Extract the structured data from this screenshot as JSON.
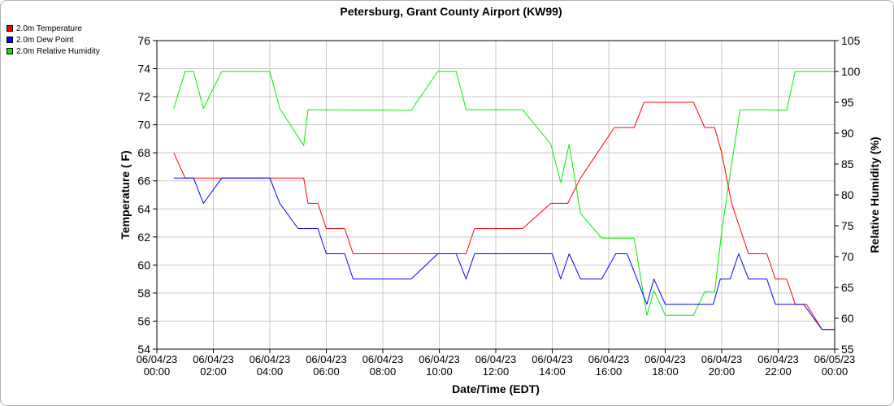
{
  "chart_data": {
    "type": "line",
    "title": "Petersburg, Grant County Airport (KW99)",
    "xlabel": "Date/Time (EDT)",
    "ylabel_left": "Temperature ( F)",
    "ylabel_right": "Relative Humidity (%)",
    "ylim_left": [
      54,
      76
    ],
    "ylim_right": [
      55,
      105
    ],
    "xlim_hours": [
      0,
      24
    ],
    "grid": true,
    "legend_placement": "top-left",
    "yticks_left": [
      "54",
      "56",
      "58",
      "60",
      "62",
      "64",
      "66",
      "68",
      "70",
      "72",
      "74",
      "76"
    ],
    "yticks_right": [
      "55",
      "60",
      "65",
      "70",
      "75",
      "80",
      "85",
      "90",
      "95",
      "100",
      "105"
    ],
    "x_ticks": [
      {
        "date": "06/04/23",
        "time": "00:00"
      },
      {
        "date": "06/04/23",
        "time": "02:00"
      },
      {
        "date": "06/04/23",
        "time": "04:00"
      },
      {
        "date": "06/04/23",
        "time": "06:00"
      },
      {
        "date": "06/04/23",
        "time": "08:00"
      },
      {
        "date": "06/04/23",
        "time": "10:00"
      },
      {
        "date": "06/04/23",
        "time": "12:00"
      },
      {
        "date": "06/04/23",
        "time": "14:00"
      },
      {
        "date": "06/04/23",
        "time": "16:00"
      },
      {
        "date": "06/04/23",
        "time": "18:00"
      },
      {
        "date": "06/04/23",
        "time": "20:00"
      },
      {
        "date": "06/04/23",
        "time": "22:00"
      },
      {
        "date": "06/05/23",
        "time": "00:00"
      }
    ],
    "series": [
      {
        "name": "2.0m Temperature",
        "color": "#ff0000",
        "axis": "left",
        "points": [
          [
            0.6,
            68
          ],
          [
            1.0,
            66.2
          ],
          [
            1.3,
            66.2
          ],
          [
            1.65,
            66.2
          ],
          [
            2.3,
            66.2
          ],
          [
            4.0,
            66.2
          ],
          [
            4.35,
            66.2
          ],
          [
            5.2,
            66.2
          ],
          [
            5.35,
            64.4
          ],
          [
            5.7,
            64.4
          ],
          [
            6.0,
            62.6
          ],
          [
            6.65,
            62.6
          ],
          [
            6.95,
            60.8
          ],
          [
            10.0,
            60.8
          ],
          [
            10.35,
            60.8
          ],
          [
            10.95,
            60.8
          ],
          [
            11.25,
            62.6
          ],
          [
            12.95,
            62.6
          ],
          [
            13.95,
            64.4
          ],
          [
            14.55,
            64.4
          ],
          [
            15.0,
            66.2
          ],
          [
            15.6,
            68.0
          ],
          [
            16.2,
            69.8
          ],
          [
            16.9,
            69.8
          ],
          [
            17.25,
            71.6
          ],
          [
            19.0,
            71.6
          ],
          [
            19.4,
            69.8
          ],
          [
            19.75,
            69.8
          ],
          [
            20.0,
            68.0
          ],
          [
            20.35,
            64.4
          ],
          [
            20.65,
            62.6
          ],
          [
            20.95,
            60.8
          ],
          [
            21.6,
            60.8
          ],
          [
            21.9,
            59.0
          ],
          [
            22.3,
            59.0
          ],
          [
            22.6,
            57.2
          ],
          [
            23.0,
            57.2
          ],
          [
            23.55,
            55.4
          ],
          [
            24.0,
            55.4
          ]
        ]
      },
      {
        "name": "2.0m Dew Point",
        "color": "#0000ff",
        "axis": "left",
        "points": [
          [
            0.6,
            66.2
          ],
          [
            1.0,
            66.2
          ],
          [
            1.3,
            66.2
          ],
          [
            1.65,
            64.4
          ],
          [
            2.3,
            66.2
          ],
          [
            4.0,
            66.2
          ],
          [
            4.35,
            64.4
          ],
          [
            5.0,
            62.6
          ],
          [
            5.7,
            62.6
          ],
          [
            6.0,
            60.8
          ],
          [
            6.65,
            60.8
          ],
          [
            6.95,
            59.0
          ],
          [
            9.0,
            59.0
          ],
          [
            9.95,
            60.8
          ],
          [
            10.6,
            60.8
          ],
          [
            10.95,
            59.0
          ],
          [
            11.25,
            60.8
          ],
          [
            14.0,
            60.8
          ],
          [
            14.3,
            59.0
          ],
          [
            14.6,
            60.8
          ],
          [
            15.0,
            59.0
          ],
          [
            15.75,
            59.0
          ],
          [
            16.25,
            60.8
          ],
          [
            16.65,
            60.8
          ],
          [
            17.0,
            59.0
          ],
          [
            17.35,
            57.2
          ],
          [
            17.6,
            59.0
          ],
          [
            18.0,
            57.2
          ],
          [
            19.7,
            57.2
          ],
          [
            19.95,
            59.0
          ],
          [
            20.3,
            59.0
          ],
          [
            20.6,
            60.8
          ],
          [
            20.95,
            59.0
          ],
          [
            21.6,
            59.0
          ],
          [
            21.9,
            57.2
          ],
          [
            22.9,
            57.2
          ],
          [
            23.55,
            55.4
          ],
          [
            24.0,
            55.4
          ]
        ]
      },
      {
        "name": "2.0m Relative Humidity",
        "color": "#00ee00",
        "axis": "right",
        "points": [
          [
            0.6,
            94
          ],
          [
            1.0,
            100
          ],
          [
            1.3,
            100
          ],
          [
            1.65,
            94
          ],
          [
            2.3,
            100
          ],
          [
            4.0,
            100
          ],
          [
            4.35,
            94
          ],
          [
            5.2,
            88
          ],
          [
            5.35,
            93.8
          ],
          [
            6.0,
            93.8
          ],
          [
            9.0,
            93.7
          ],
          [
            9.95,
            100
          ],
          [
            10.6,
            100
          ],
          [
            10.95,
            93.8
          ],
          [
            12.95,
            93.8
          ],
          [
            13.95,
            88.2
          ],
          [
            14.3,
            82
          ],
          [
            14.6,
            88.2
          ],
          [
            15.0,
            77
          ],
          [
            15.75,
            73
          ],
          [
            16.9,
            73
          ],
          [
            17.35,
            60.5
          ],
          [
            17.6,
            64.5
          ],
          [
            18.0,
            60.5
          ],
          [
            19.0,
            60.5
          ],
          [
            19.4,
            64.3
          ],
          [
            19.75,
            64.3
          ],
          [
            20.0,
            74
          ],
          [
            20.35,
            85
          ],
          [
            20.65,
            93.8
          ],
          [
            21.6,
            93.8
          ],
          [
            22.3,
            93.7
          ],
          [
            22.6,
            100
          ],
          [
            24.0,
            100
          ]
        ]
      }
    ]
  }
}
